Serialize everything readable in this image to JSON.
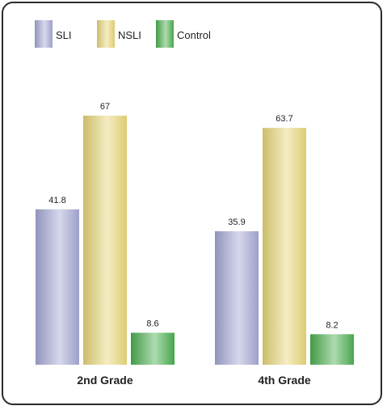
{
  "chart_data": {
    "type": "bar",
    "categories": [
      "2nd Grade",
      "4th Grade"
    ],
    "series": [
      {
        "name": "SLI",
        "values": [
          41.8,
          35.9
        ],
        "color": "#a5a8d4"
      },
      {
        "name": "NSLI",
        "values": [
          67,
          63.7
        ],
        "color": "#e8d77a"
      },
      {
        "name": "Control",
        "values": [
          8.6,
          8.2
        ],
        "color": "#4caf50"
      }
    ],
    "data_labels": [
      [
        "41.8",
        "67",
        "8.6"
      ],
      [
        "35.9",
        "63.7",
        "8.2"
      ]
    ],
    "title": "",
    "xlabel": "",
    "ylabel": "",
    "ylim": [
      0,
      67
    ],
    "grid": false,
    "legend_position": "top-left"
  }
}
